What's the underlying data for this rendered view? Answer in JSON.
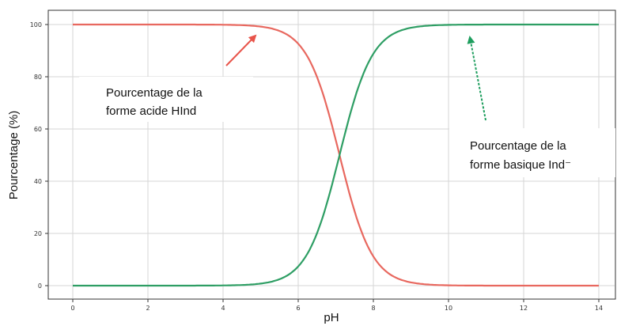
{
  "chart_data": {
    "type": "line",
    "title": "",
    "xlabel": "pH",
    "ylabel": "Pourcentage  (%)",
    "xlim": [
      0,
      14
    ],
    "ylim": [
      0,
      100
    ],
    "grid": true,
    "x_ticks": [
      "0",
      "2",
      "4",
      "6",
      "8",
      "10",
      "12",
      "14"
    ],
    "y_ticks": [
      "0",
      "20",
      "40",
      "60",
      "80",
      "100"
    ],
    "pKa": 7.1,
    "x": [
      0,
      1,
      2,
      3,
      4,
      4.5,
      5,
      5.5,
      6,
      6.25,
      6.5,
      6.75,
      7,
      7.1,
      7.25,
      7.5,
      7.75,
      8,
      8.25,
      8.5,
      9,
      9.5,
      10,
      11,
      12,
      13,
      14
    ],
    "series": [
      {
        "name": "Pourcentage de la forme acide HInd",
        "color": "#e8685f",
        "values": [
          100,
          100,
          100,
          100,
          99.9,
          99.7,
          99.2,
          97.5,
          92.6,
          87.6,
          79.9,
          69.1,
          55.7,
          50,
          41.5,
          28.5,
          18.3,
          11.2,
          6.6,
          3.8,
          1.2,
          0.4,
          0.1,
          0,
          0,
          0,
          0
        ]
      },
      {
        "name": "Pourcentage de la forme basique Ind⁻",
        "color": "#2e9e64",
        "values": [
          0,
          0,
          0,
          0,
          0.1,
          0.3,
          0.8,
          2.5,
          7.4,
          12.4,
          20.1,
          30.9,
          44.3,
          50,
          58.5,
          71.5,
          81.7,
          88.8,
          93.4,
          96.2,
          98.8,
          99.6,
          99.9,
          100,
          100,
          100,
          100
        ]
      }
    ],
    "annotations": {
      "acid_line1": "Pourcentage de la",
      "acid_line2": "forme acide HInd",
      "base_line1": "Pourcentage de la",
      "base_line2": "forme basique Ind⁻",
      "acid_arrow_color": "#e8544a",
      "base_arrow_color": "#1e9e5e"
    }
  }
}
